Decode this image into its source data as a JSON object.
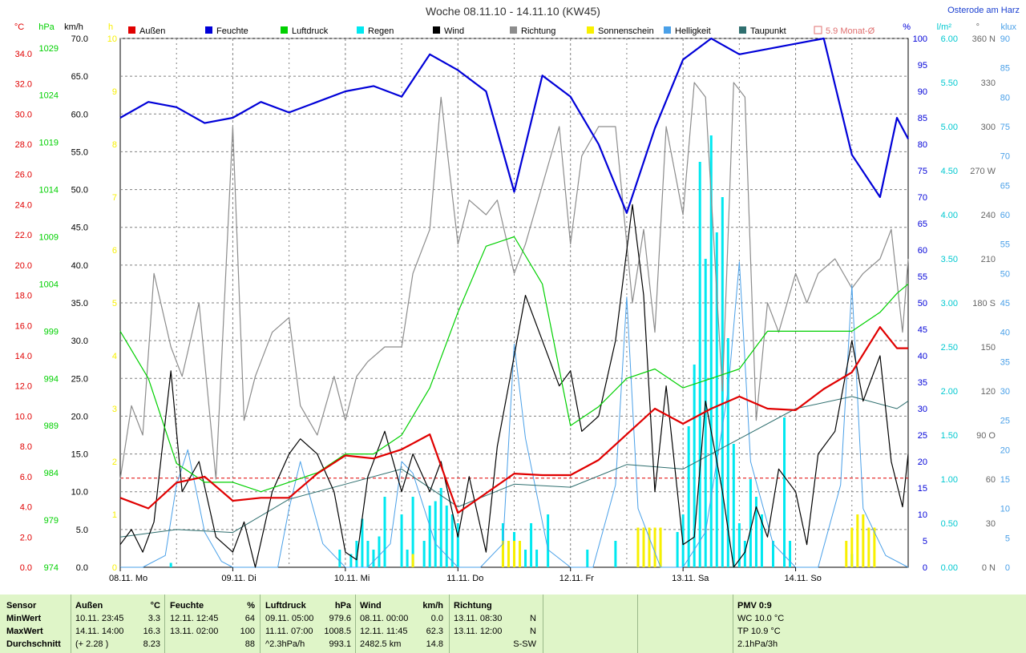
{
  "window": {
    "title": "Woche 08.11.10 - 14.11.10 (KW45)",
    "station": "Osterode am Harz"
  },
  "colors": {
    "aussen": "#e00000",
    "feuchte": "#0000d8",
    "luftdruck": "#00d000",
    "regen": "#00e8f0",
    "wind": "#000000",
    "richtung": "#8c8c8c",
    "sonne": "#f8f000",
    "helligkeit": "#4aa0e8",
    "taupunkt": "#2f6f6f",
    "monat": "#e07070",
    "grid": "#808080",
    "panel_bg": "#dff5c8"
  },
  "legend": [
    {
      "key": "aussen",
      "label": "Außen",
      "color": "#e00000"
    },
    {
      "key": "feuchte",
      "label": "Feuchte",
      "color": "#0000d8"
    },
    {
      "key": "luftdruck",
      "label": "Luftdruck",
      "color": "#00d000"
    },
    {
      "key": "regen",
      "label": "Regen",
      "color": "#00e8f0"
    },
    {
      "key": "wind",
      "label": "Wind",
      "color": "#000000"
    },
    {
      "key": "richtung",
      "label": "Richtung",
      "color": "#8c8c8c"
    },
    {
      "key": "sonne",
      "label": "Sonnenschein",
      "color": "#f8f000"
    },
    {
      "key": "helligkeit",
      "label": "Helligkeit",
      "color": "#4aa0e8"
    },
    {
      "key": "taupunkt",
      "label": "Taupunkt",
      "color": "#2f6f6f"
    },
    {
      "key": "monat",
      "label": "5.9 Monat-Ø",
      "color": "#e07070",
      "outline": true
    }
  ],
  "axes_left": [
    {
      "unit": "°C",
      "color": "#e00000",
      "ticks": [
        "34.0",
        "32.0",
        "30.0",
        "28.0",
        "26.0",
        "24.0",
        "22.0",
        "20.0",
        "18.0",
        "16.0",
        "14.0",
        "12.0",
        "10.0",
        "8.0",
        "6.0",
        "4.0",
        "2.0",
        "0.0"
      ],
      "min": 0,
      "max": 35
    },
    {
      "unit": "hPa",
      "color": "#00d000",
      "ticks": [
        "1029",
        "1024",
        "1019",
        "1014",
        "1009",
        "1004",
        "999",
        "994",
        "989",
        "984",
        "979",
        "974"
      ],
      "min": 974,
      "max": 1030
    },
    {
      "unit": "km/h",
      "color": "#000000",
      "ticks": [
        "70.0",
        "65.0",
        "60.0",
        "55.0",
        "50.0",
        "45.0",
        "40.0",
        "35.0",
        "30.0",
        "25.0",
        "20.0",
        "15.0",
        "10.0",
        "5.0",
        "0.0"
      ],
      "min": 0,
      "max": 70
    },
    {
      "unit": "h",
      "color": "#f8f000",
      "ticks": [
        "10",
        "9",
        "8",
        "7",
        "6",
        "5",
        "4",
        "3",
        "2",
        "1",
        "0"
      ],
      "min": 0,
      "max": 10
    }
  ],
  "axes_right": [
    {
      "unit": "%",
      "color": "#0000d8",
      "ticks": [
        "100",
        "95",
        "90",
        "85",
        "80",
        "75",
        "70",
        "65",
        "60",
        "55",
        "50",
        "45",
        "40",
        "35",
        "30",
        "25",
        "20",
        "15",
        "10",
        "5",
        "0"
      ],
      "min": 0,
      "max": 100
    },
    {
      "unit": "l/m²",
      "color": "#00c8d0",
      "ticks": [
        "6.00",
        "5.50",
        "5.00",
        "4.50",
        "4.00",
        "3.50",
        "3.00",
        "2.50",
        "2.00",
        "1.50",
        "1.00",
        "0.50",
        "0.00"
      ],
      "min": 0,
      "max": 6
    },
    {
      "unit": "°",
      "color": "#666666",
      "ticks": [
        "360 N",
        "330",
        "300",
        "270 W",
        "240",
        "210",
        "180 S",
        "150",
        "120",
        "90 O",
        "60",
        "30",
        "0 N"
      ],
      "min": 0,
      "max": 360
    },
    {
      "unit": "klux",
      "color": "#4aa0e8",
      "ticks": [
        "90",
        "85",
        "80",
        "75",
        "70",
        "65",
        "60",
        "55",
        "50",
        "45",
        "40",
        "35",
        "30",
        "25",
        "20",
        "15",
        "10",
        "5",
        "0"
      ],
      "min": 0,
      "max": 90
    }
  ],
  "chart_data": {
    "type": "line",
    "title": "Woche 08.11.10 - 14.11.10 (KW45)",
    "x_unit": "days since 08.11. 00:00",
    "x_range": [
      0,
      7
    ],
    "day_labels": [
      "08.11. Mo",
      "09.11. Di",
      "10.11. Mi",
      "11.11. Do",
      "12.11. Fr",
      "13.11. Sa",
      "14.11. So"
    ],
    "month_avg_temp": 5.9,
    "series": [
      {
        "name": "Außen",
        "key": "aussen",
        "unit": "°C",
        "axis": "temp",
        "x": [
          0,
          0.25,
          0.5,
          0.75,
          1,
          1.25,
          1.5,
          1.75,
          2,
          2.25,
          2.5,
          2.75,
          3,
          3.25,
          3.5,
          3.75,
          4,
          4.25,
          4.5,
          4.75,
          5,
          5.25,
          5.5,
          5.75,
          6,
          6.25,
          6.5,
          6.75,
          6.9,
          7
        ],
        "y": [
          4.6,
          3.9,
          5.6,
          6.0,
          4.4,
          4.6,
          4.6,
          6.2,
          7.4,
          7.2,
          7.8,
          8.8,
          3.6,
          4.9,
          6.2,
          6.1,
          6.1,
          7.1,
          8.8,
          10.5,
          9.5,
          10.5,
          11.3,
          10.5,
          10.4,
          11.8,
          12.9,
          15.9,
          14.5,
          14.5
        ]
      },
      {
        "name": "Feuchte",
        "key": "feuchte",
        "unit": "%",
        "axis": "rh",
        "x": [
          0,
          0.25,
          0.5,
          0.75,
          1,
          1.25,
          1.5,
          1.75,
          2,
          2.25,
          2.5,
          2.75,
          3,
          3.25,
          3.5,
          3.75,
          4,
          4.25,
          4.5,
          4.75,
          5,
          5.25,
          5.5,
          5.75,
          6,
          6.25,
          6.5,
          6.75,
          6.9,
          7
        ],
        "y": [
          85,
          88,
          87,
          84,
          85,
          88,
          86,
          88,
          90,
          91,
          89,
          97,
          94,
          90,
          71,
          93,
          89,
          80,
          67,
          83,
          96,
          100,
          97,
          98,
          99,
          100,
          78,
          70,
          85,
          81
        ]
      },
      {
        "name": "Luftdruck",
        "key": "luftdruck",
        "unit": "hPa",
        "axis": "hpa",
        "x": [
          0,
          0.25,
          0.5,
          0.75,
          1,
          1.25,
          1.5,
          1.75,
          2,
          2.25,
          2.5,
          2.75,
          3,
          3.25,
          3.5,
          3.75,
          4,
          4.25,
          4.5,
          4.75,
          5,
          5.25,
          5.5,
          5.75,
          6,
          6.25,
          6.5,
          6.75,
          6.9,
          7
        ],
        "y": [
          999,
          994,
          985,
          983,
          983,
          982,
          983,
          984,
          986,
          986,
          988,
          993,
          1001,
          1008,
          1009,
          1004,
          989,
          991,
          994,
          995,
          993,
          994,
          995,
          999,
          999,
          999,
          999,
          1001,
          1003,
          1004
        ]
      },
      {
        "name": "Wind",
        "key": "wind",
        "unit": "km/h",
        "axis": "wind",
        "x": [
          0,
          0.1,
          0.2,
          0.3,
          0.45,
          0.55,
          0.7,
          0.85,
          1,
          1.1,
          1.2,
          1.35,
          1.5,
          1.6,
          1.75,
          1.9,
          2,
          2.1,
          2.2,
          2.35,
          2.5,
          2.6,
          2.75,
          2.85,
          3,
          3.1,
          3.25,
          3.35,
          3.5,
          3.6,
          3.75,
          3.9,
          4,
          4.1,
          4.25,
          4.4,
          4.55,
          4.65,
          4.75,
          4.85,
          5,
          5.1,
          5.2,
          5.35,
          5.45,
          5.55,
          5.65,
          5.75,
          5.85,
          6,
          6.1,
          6.2,
          6.35,
          6.5,
          6.6,
          6.75,
          6.85,
          6.95,
          7
        ],
        "y": [
          3,
          5,
          2,
          6,
          26,
          10,
          14,
          4,
          2,
          6,
          0,
          10,
          15,
          17,
          15,
          10,
          2,
          1,
          12,
          18,
          10,
          15,
          10,
          14,
          4,
          12,
          2,
          16,
          28,
          36,
          30,
          24,
          26,
          18,
          20,
          30,
          48,
          36,
          10,
          24,
          3,
          4,
          22,
          10,
          0,
          2,
          8,
          4,
          13,
          10,
          3,
          15,
          18,
          30,
          22,
          28,
          14,
          8,
          15
        ]
      },
      {
        "name": "Richtung",
        "key": "richtung",
        "unit": "°",
        "axis": "dir",
        "x": [
          0,
          0.1,
          0.2,
          0.3,
          0.45,
          0.55,
          0.7,
          0.85,
          1,
          1.1,
          1.2,
          1.35,
          1.5,
          1.6,
          1.75,
          1.9,
          2,
          2.1,
          2.2,
          2.35,
          2.5,
          2.6,
          2.75,
          2.85,
          3,
          3.1,
          3.25,
          3.35,
          3.5,
          3.6,
          3.75,
          3.9,
          4,
          4.1,
          4.25,
          4.4,
          4.55,
          4.65,
          4.75,
          4.85,
          5,
          5.1,
          5.2,
          5.35,
          5.45,
          5.55,
          5.65,
          5.75,
          5.85,
          6,
          6.1,
          6.2,
          6.35,
          6.5,
          6.6,
          6.75,
          6.85,
          6.95,
          7
        ],
        "y": [
          60,
          110,
          90,
          200,
          150,
          130,
          180,
          60,
          300,
          100,
          130,
          160,
          170,
          110,
          90,
          130,
          100,
          130,
          140,
          150,
          150,
          200,
          230,
          320,
          220,
          250,
          240,
          250,
          200,
          220,
          260,
          300,
          220,
          280,
          300,
          300,
          180,
          230,
          160,
          300,
          240,
          330,
          320,
          120,
          330,
          320,
          100,
          180,
          160,
          200,
          180,
          200,
          210,
          190,
          200,
          210,
          230,
          160,
          210
        ]
      },
      {
        "name": "Helligkeit",
        "key": "helligkeit",
        "unit": "klux",
        "axis": "lux",
        "x": [
          0,
          0.2,
          0.4,
          0.5,
          0.6,
          0.75,
          0.9,
          1,
          1.2,
          1.4,
          1.5,
          1.6,
          1.8,
          2,
          2.2,
          2.4,
          2.5,
          2.6,
          2.8,
          3,
          3.2,
          3.4,
          3.5,
          3.6,
          3.8,
          4,
          4.2,
          4.4,
          4.5,
          4.6,
          4.8,
          5,
          5.2,
          5.4,
          5.5,
          5.6,
          5.8,
          6,
          6.2,
          6.4,
          6.5,
          6.6,
          6.8,
          7
        ],
        "y": [
          0,
          0,
          2,
          14,
          20,
          6,
          1,
          0,
          0,
          0,
          10,
          18,
          4,
          0,
          0,
          4,
          18,
          16,
          4,
          0,
          0,
          4,
          38,
          22,
          3,
          0,
          0,
          14,
          46,
          10,
          0,
          0,
          6,
          30,
          52,
          18,
          4,
          0,
          0,
          14,
          48,
          10,
          2,
          0
        ]
      },
      {
        "name": "Taupunkt",
        "key": "taupunkt",
        "unit": "°C",
        "axis": "temp",
        "x": [
          0,
          0.5,
          1,
          1.5,
          2,
          2.5,
          3,
          3.5,
          4,
          4.5,
          5,
          5.5,
          6,
          6.5,
          6.9,
          7
        ],
        "y": [
          2.0,
          2.5,
          2.3,
          4.5,
          5.5,
          6.5,
          4.0,
          5.5,
          5.3,
          6.8,
          6.5,
          8.5,
          10.5,
          11.3,
          10.5,
          11.0
        ]
      },
      {
        "name": "Regen",
        "key": "regen",
        "unit": "l/m²",
        "axis": "rain",
        "kind": "bars",
        "x": [
          0.45,
          1.95,
          2.05,
          2.1,
          2.15,
          2.2,
          2.25,
          2.3,
          2.35,
          2.5,
          2.55,
          2.6,
          2.7,
          2.75,
          2.8,
          2.85,
          2.9,
          2.95,
          3.0,
          3.4,
          3.5,
          3.6,
          3.65,
          3.7,
          3.8,
          4.15,
          4.4,
          4.65,
          4.8,
          4.95,
          5.0,
          5.05,
          5.1,
          5.15,
          5.2,
          5.25,
          5.3,
          5.35,
          5.4,
          5.45,
          5.5,
          5.55,
          5.6,
          5.65,
          5.7,
          5.8,
          5.9,
          5.95,
          6.5
        ],
        "y": [
          0.05,
          0.2,
          0.15,
          0.3,
          0.55,
          0.3,
          0.2,
          0.35,
          0.8,
          0.6,
          0.2,
          0.8,
          0.3,
          0.7,
          0.75,
          0.9,
          0.7,
          0.6,
          0.5,
          0.5,
          0.4,
          0.2,
          0.5,
          0.2,
          0.6,
          0.2,
          0.3,
          0.3,
          0.2,
          0.4,
          0.6,
          1.6,
          2.3,
          4.6,
          3.5,
          4.9,
          3.8,
          4.2,
          2.6,
          1.4,
          0.5,
          0.3,
          1.0,
          0.8,
          0.6,
          0.3,
          1.7,
          0.3,
          0.15
        ]
      },
      {
        "name": "Sonnenschein",
        "key": "sonne",
        "unit": "h",
        "axis": "sun",
        "kind": "bars",
        "x": [
          2.6,
          3.4,
          3.45,
          3.5,
          3.55,
          4.6,
          4.65,
          4.7,
          4.75,
          4.8,
          6.45,
          6.5,
          6.55,
          6.6,
          6.65,
          6.7
        ],
        "y": [
          0.25,
          0.5,
          0.5,
          0.5,
          0.5,
          0.75,
          0.75,
          0.75,
          0.75,
          0.75,
          0.5,
          0.75,
          1.0,
          1.0,
          0.75,
          0.75
        ]
      }
    ]
  },
  "stats": {
    "headers": {
      "sensor": "Sensor",
      "aussen": "Außen",
      "aussen_unit": "°C",
      "feuchte": "Feuchte",
      "feuchte_unit": "%",
      "luftdruck": "Luftdruck",
      "luftdruck_unit": "hPa",
      "wind": "Wind",
      "wind_unit": "km/h",
      "richtung": "Richtung",
      "pmv": "PMV 0:9"
    },
    "row_labels": [
      "MinWert",
      "MaxWert",
      "Durchschnitt"
    ],
    "aussen": [
      [
        "10.11.  23:45",
        "3.3"
      ],
      [
        "14.11.  14:00",
        "16.3"
      ],
      [
        "(+ 2.28 )",
        "8.23"
      ]
    ],
    "feuchte": [
      [
        "12.11.  12:45",
        "64"
      ],
      [
        "13.11.  02:00",
        "100"
      ],
      [
        "",
        "88"
      ]
    ],
    "luftdruck": [
      [
        "09.11.  05:00",
        "979.6"
      ],
      [
        "11.11.  07:00",
        "1008.5"
      ],
      [
        "^2.3hPa/h",
        "993.1"
      ]
    ],
    "wind": [
      [
        "08.11.  00:00",
        "0.0"
      ],
      [
        "12.11.  11:45",
        "62.3"
      ],
      [
        "2482.5 km",
        "14.8"
      ]
    ],
    "richtung": [
      [
        "13.11.  08:30",
        "N"
      ],
      [
        "13.11.  12:00",
        "N"
      ],
      [
        "",
        "S-SW"
      ]
    ],
    "pmv": [
      "WC 10.0 °C",
      "TP 10.9 °C",
      "2.1hPa/3h"
    ]
  }
}
